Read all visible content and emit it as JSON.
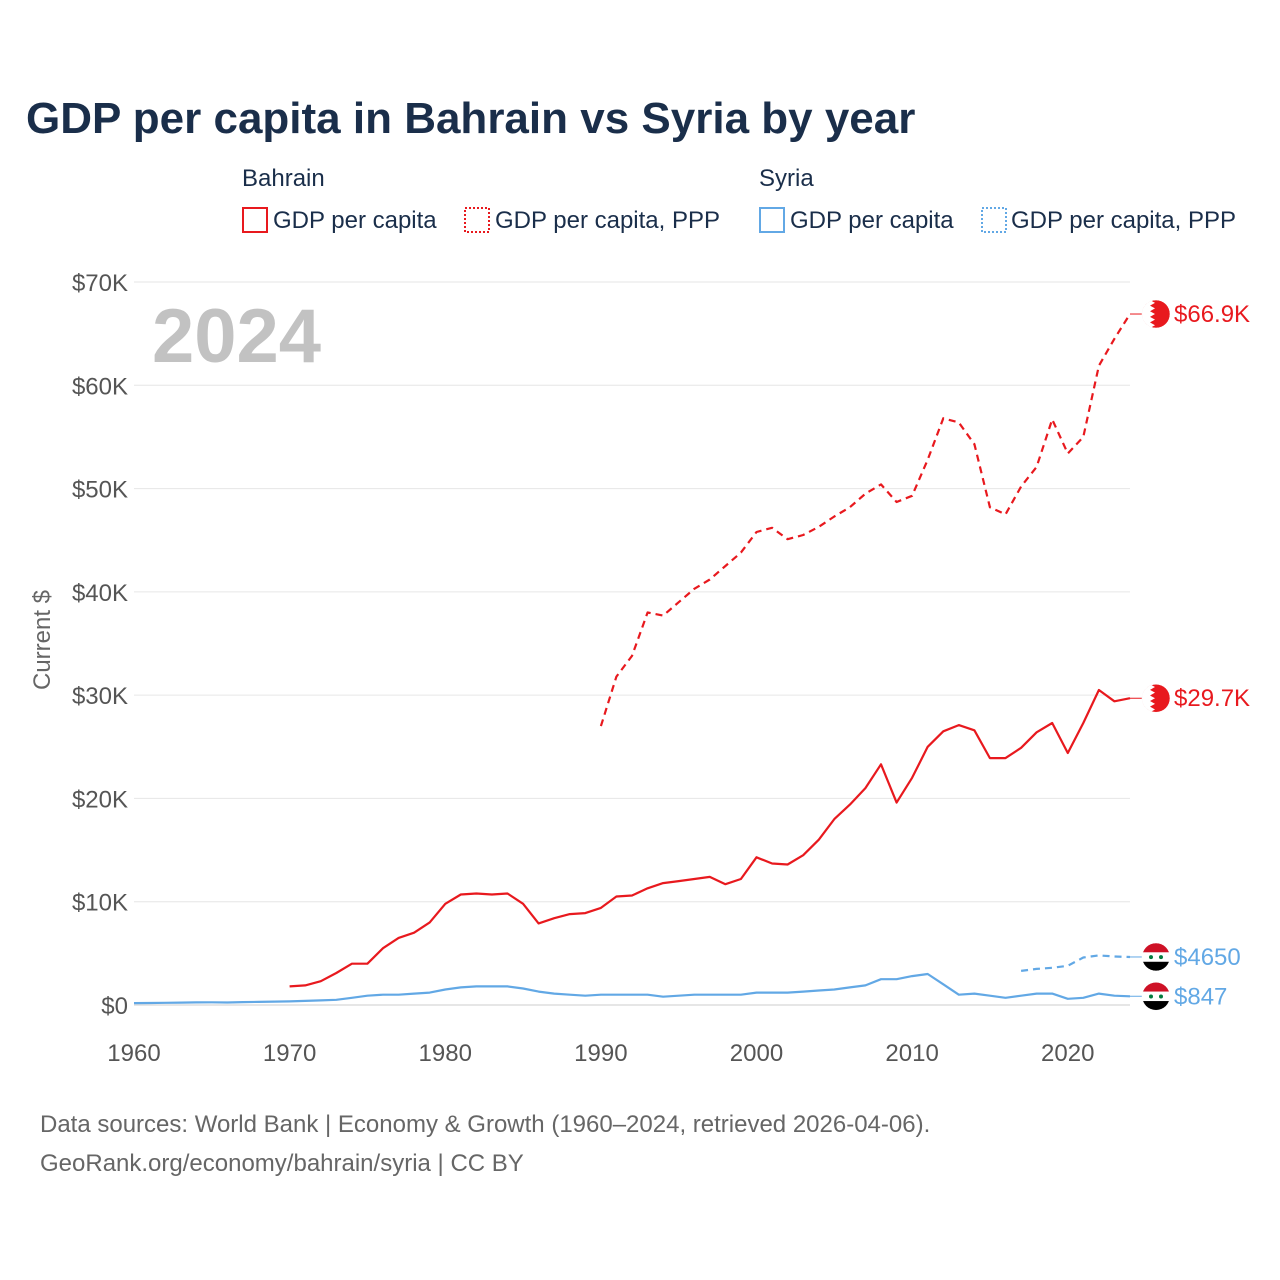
{
  "chart_data": {
    "type": "line",
    "title": "GDP per capita in Bahrain vs Syria by year",
    "year_label": "2024",
    "ylabel": "Current $",
    "xlabel": "",
    "xlim": [
      1960,
      2024
    ],
    "ylim": [
      0,
      70000
    ],
    "x_ticks": [
      1960,
      1970,
      1980,
      1990,
      2000,
      2010,
      2020
    ],
    "x_tick_labels": [
      "1960",
      "1970",
      "1980",
      "1990",
      "2000",
      "2010",
      "2020"
    ],
    "y_ticks": [
      0,
      10000,
      20000,
      30000,
      40000,
      50000,
      60000,
      70000
    ],
    "y_tick_labels": [
      "$0",
      "$10K",
      "$20K",
      "$30K",
      "$40K",
      "$50K",
      "$60K",
      "$70K"
    ],
    "grid": true,
    "legend": {
      "placement": "top",
      "groups": [
        {
          "name": "Bahrain",
          "entries": [
            "GDP per capita",
            "GDP per capita, PPP"
          ]
        },
        {
          "name": "Syria",
          "entries": [
            "GDP per capita",
            "GDP per capita, PPP"
          ]
        }
      ]
    },
    "colors": {
      "bahrain": "#e8191e",
      "syria": "#62a8e5"
    },
    "series": [
      {
        "name": "Bahrain GDP per capita",
        "country": "bahrain",
        "style": "solid",
        "end_label": "$29.7K",
        "x": [
          1970,
          1971,
          1972,
          1973,
          1974,
          1975,
          1976,
          1977,
          1978,
          1979,
          1980,
          1981,
          1982,
          1983,
          1984,
          1985,
          1986,
          1987,
          1988,
          1989,
          1990,
          1991,
          1992,
          1993,
          1994,
          1995,
          1996,
          1997,
          1998,
          1999,
          2000,
          2001,
          2002,
          2003,
          2004,
          2005,
          2006,
          2007,
          2008,
          2009,
          2010,
          2011,
          2012,
          2013,
          2014,
          2015,
          2016,
          2017,
          2018,
          2019,
          2020,
          2021,
          2022,
          2023,
          2024
        ],
        "values": [
          1800,
          1900,
          2300,
          3100,
          4000,
          4000,
          5500,
          6500,
          7000,
          8000,
          9800,
          10700,
          10800,
          10700,
          10800,
          9800,
          7900,
          8400,
          8800,
          8900,
          9400,
          10500,
          10600,
          11300,
          11800,
          12000,
          12200,
          12400,
          11700,
          12200,
          14300,
          13700,
          13600,
          14500,
          16000,
          18000,
          19400,
          21000,
          23300,
          19600,
          22000,
          25000,
          26500,
          27100,
          26600,
          23900,
          23900,
          24900,
          26400,
          27300,
          24400,
          27300,
          30500,
          29400,
          29700
        ]
      },
      {
        "name": "Bahrain GDP per capita, PPP",
        "country": "bahrain",
        "style": "dashed",
        "end_label": "$66.9K",
        "x": [
          1990,
          1991,
          1992,
          1993,
          1994,
          1995,
          1996,
          1997,
          1998,
          1999,
          2000,
          2001,
          2002,
          2003,
          2004,
          2005,
          2006,
          2007,
          2008,
          2009,
          2010,
          2011,
          2012,
          2013,
          2014,
          2015,
          2016,
          2017,
          2018,
          2019,
          2020,
          2021,
          2022,
          2023,
          2024
        ],
        "values": [
          27000,
          31800,
          33800,
          38000,
          37700,
          39000,
          40300,
          41200,
          42500,
          43800,
          45800,
          46200,
          45100,
          45500,
          46300,
          47300,
          48200,
          49500,
          50400,
          48700,
          49300,
          52800,
          56800,
          56400,
          54300,
          48200,
          47500,
          50200,
          52100,
          56700,
          53400,
          55000,
          61900,
          64500,
          66900
        ]
      },
      {
        "name": "Syria GDP per capita",
        "country": "syria",
        "style": "solid",
        "end_label": "$847",
        "x": [
          1960,
          1961,
          1962,
          1963,
          1964,
          1965,
          1966,
          1967,
          1968,
          1969,
          1970,
          1971,
          1972,
          1973,
          1974,
          1975,
          1976,
          1977,
          1978,
          1979,
          1980,
          1981,
          1982,
          1983,
          1984,
          1985,
          1986,
          1987,
          1988,
          1989,
          1990,
          1991,
          1992,
          1993,
          1994,
          1995,
          1996,
          1997,
          1998,
          1999,
          2000,
          2001,
          2002,
          2003,
          2004,
          2005,
          2006,
          2007,
          2008,
          2009,
          2010,
          2011,
          2012,
          2013,
          2014,
          2015,
          2016,
          2017,
          2018,
          2019,
          2020,
          2021,
          2022,
          2023,
          2024
        ],
        "values": [
          180,
          190,
          210,
          230,
          250,
          260,
          240,
          280,
          300,
          330,
          350,
          400,
          450,
          500,
          700,
          900,
          1000,
          1000,
          1100,
          1200,
          1500,
          1700,
          1800,
          1800,
          1800,
          1600,
          1300,
          1100,
          1000,
          900,
          1000,
          1000,
          1000,
          1000,
          800,
          900,
          1000,
          1000,
          1000,
          1000,
          1200,
          1200,
          1200,
          1300,
          1400,
          1500,
          1700,
          1900,
          2500,
          2500,
          2800,
          3000,
          2000,
          1000,
          1100,
          900,
          700,
          900,
          1100,
          1100,
          600,
          700,
          1100,
          900,
          847
        ]
      },
      {
        "name": "Syria GDP per capita, PPP",
        "country": "syria",
        "style": "dashed",
        "end_label": "$4650",
        "x": [
          2017,
          2018,
          2019,
          2020,
          2021,
          2022,
          2023,
          2024
        ],
        "values": [
          3300,
          3500,
          3600,
          3800,
          4600,
          4800,
          4700,
          4650
        ]
      }
    ]
  },
  "sources": {
    "line1": "Data sources: World Bank | Economy & Growth (1960–2024, retrieved 2026-04-06).",
    "line2": "GeoRank.org/economy/bahrain/syria | CC BY"
  }
}
